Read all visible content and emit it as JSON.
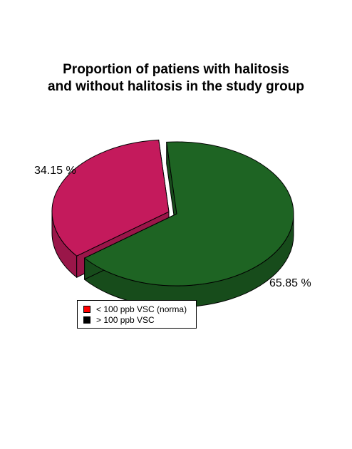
{
  "chart_data": {
    "type": "pie",
    "title_lines": [
      "Proportion of patiens with halitosis",
      "and without halitosis in the study group"
    ],
    "slices": [
      {
        "value": 34.15,
        "label": "34.15 %",
        "color": "#c41a5c",
        "side_color": "#9a1649"
      },
      {
        "value": 65.85,
        "label": "65.85 %",
        "color": "#1e6423",
        "side_color": "#174c1b"
      }
    ],
    "legend": {
      "placement": "bottom-left",
      "entries": [
        {
          "label": "< 100 ppb VSC (norma)",
          "color": "#ff0000"
        },
        {
          "label": "> 100 ppb VSC",
          "color": "#000000"
        }
      ]
    }
  }
}
